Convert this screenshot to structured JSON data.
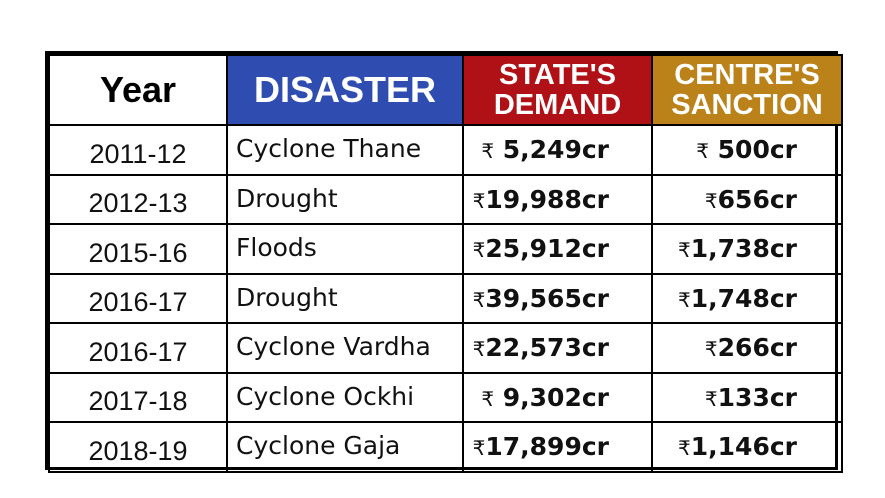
{
  "table": {
    "headers": {
      "year": "Year",
      "disaster": "DISASTER",
      "state_line1": "STATE'S",
      "state_line2": "DEMAND",
      "centre_line1": "CENTRE'S",
      "centre_line2": "SANCTION"
    },
    "rupee_symbol": "₹",
    "rows": [
      {
        "year": "2011-12",
        "disaster": "Cyclone Thane",
        "state": "5,249cr",
        "centre": "500cr"
      },
      {
        "year": "2012-13",
        "disaster": "Drought",
        "state": "19,988cr",
        "centre": "656cr"
      },
      {
        "year": "2015-16",
        "disaster": "Floods",
        "state": "25,912cr",
        "centre": "1,738cr"
      },
      {
        "year": "2016-17",
        "disaster": "Drought",
        "state": "39,565cr",
        "centre": "1,748cr"
      },
      {
        "year": "2016-17",
        "disaster": "Cyclone Vardha",
        "state": "22,573cr",
        "centre": "266cr"
      },
      {
        "year": "2017-18",
        "disaster": "Cyclone Ockhi",
        "state": "9,302cr",
        "centre": "133cr"
      },
      {
        "year": "2018-19",
        "disaster": "Cyclone Gaja",
        "state": "17,899cr",
        "centre": "1,146cr"
      }
    ]
  },
  "colors": {
    "disaster_header": "#2f4db1",
    "state_header": "#b01116",
    "centre_header": "#bb8219",
    "border": "#000000"
  }
}
